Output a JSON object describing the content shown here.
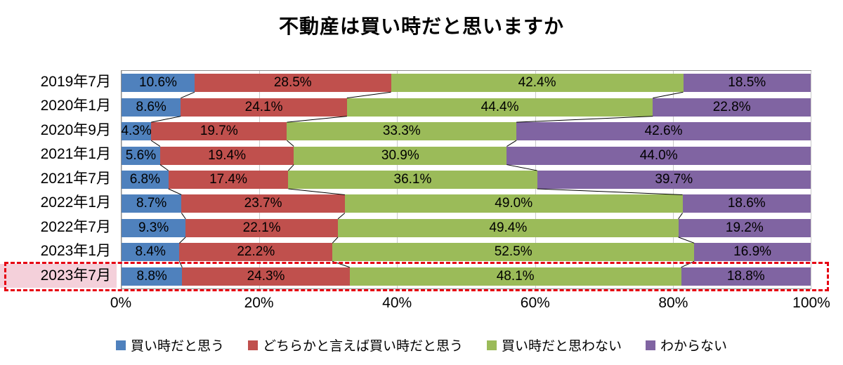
{
  "chart_data": {
    "type": "bar",
    "stacked": true,
    "orientation": "horizontal",
    "title": "不動産は買い時だと思いますか",
    "categories": [
      "2019年7月",
      "2020年1月",
      "2020年9月",
      "2021年1月",
      "2021年7月",
      "2022年1月",
      "2022年7月",
      "2023年1月",
      "2023年7月"
    ],
    "series": [
      {
        "name": "買い時だと思う",
        "color": "#4F81BD",
        "values": [
          10.6,
          8.6,
          4.3,
          5.6,
          6.8,
          8.7,
          9.3,
          8.4,
          8.8
        ]
      },
      {
        "name": "どちらかと言えば買い時だと思う",
        "color": "#C0504D",
        "values": [
          28.5,
          24.1,
          19.7,
          19.4,
          17.4,
          23.7,
          22.1,
          22.2,
          24.3
        ]
      },
      {
        "name": "買い時だと思わない",
        "color": "#9BBB59",
        "values": [
          42.4,
          44.4,
          33.3,
          30.9,
          36.1,
          49.0,
          49.4,
          52.5,
          48.1
        ]
      },
      {
        "name": "わからない",
        "color": "#8064A2",
        "values": [
          18.5,
          22.8,
          42.6,
          44.0,
          39.7,
          18.6,
          19.2,
          16.9,
          18.8
        ]
      }
    ],
    "x_axis": {
      "tick_labels": [
        "0%",
        "20%",
        "40%",
        "60%",
        "80%",
        "100%"
      ],
      "min": 0,
      "max": 100
    },
    "value_suffix": "%",
    "grid": true,
    "legend_position": "bottom",
    "connector_lines": true,
    "highlight": {
      "category": "2023年7月",
      "index": 8,
      "label_bg": "#F4D0DA",
      "outline_color": "#E60012",
      "outline_style": "dashed"
    }
  }
}
